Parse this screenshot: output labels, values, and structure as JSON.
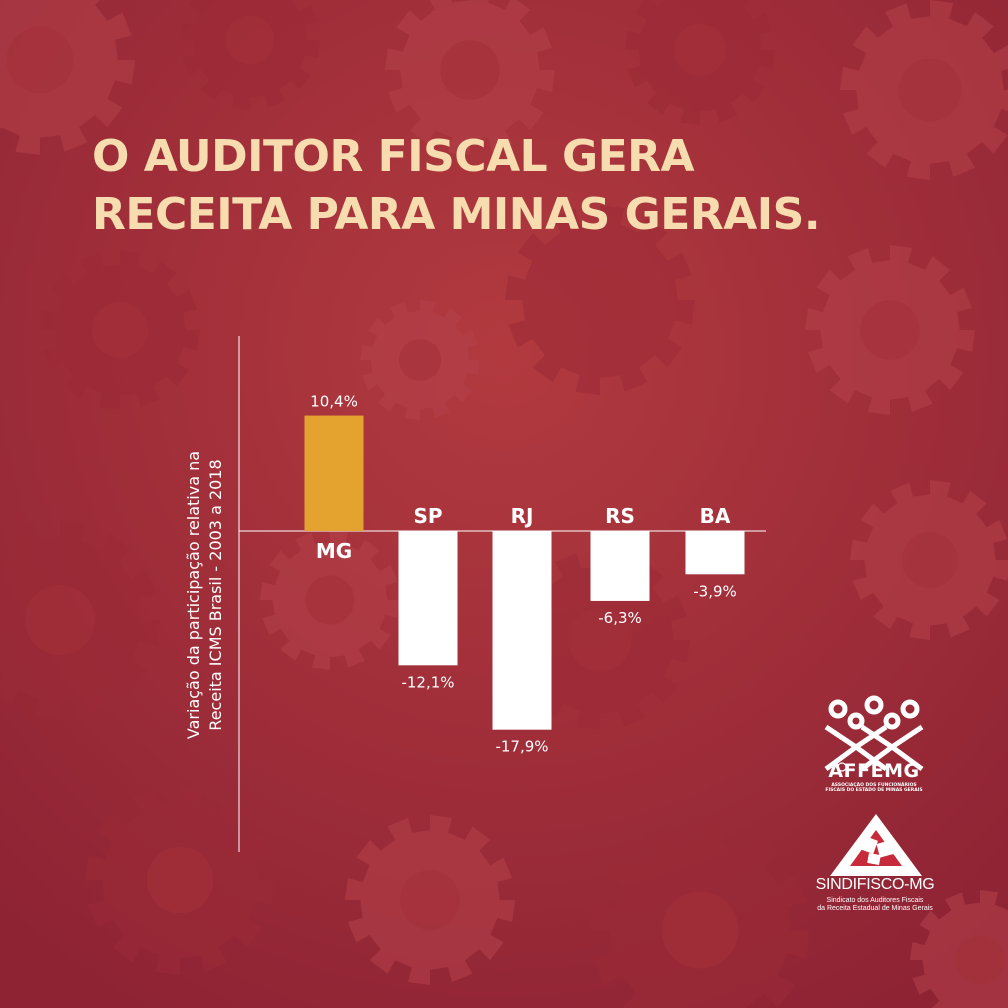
{
  "headline": {
    "line1": "O AUDITOR FISCAL GERA",
    "line2": "RECEITA PARA MINAS GERAIS."
  },
  "colors": {
    "background": "#a8303a",
    "headline": "#f6dcae",
    "highlight_bar": "#e4a32f",
    "other_bars": "#ffffff"
  },
  "chart_data": {
    "type": "bar",
    "ylabel_line1": "Variação da participação relativa na",
    "ylabel_line2": "Receita ICMS Brasil - 2003 a 2018",
    "categories": [
      "MG",
      "SP",
      "RJ",
      "RS",
      "BA"
    ],
    "values": [
      10.4,
      -12.1,
      -17.9,
      -6.3,
      -3.9
    ],
    "value_labels": [
      "10,4%",
      "-12,1%",
      "-17,9%",
      "-6,3%",
      "-3,9%"
    ],
    "highlight": "MG",
    "ylim": [
      -20,
      12
    ],
    "grid": false,
    "legend": false
  },
  "logos": {
    "affemg": {
      "name": "AFFEMG",
      "sub1": "ASSOCIAÇÃO DOS FUNCIONÁRIOS",
      "sub2": "FISCAIS DO ESTADO DE MINAS GERAIS"
    },
    "sindifisco": {
      "name": "SINDIFISCO-MG",
      "sub1": "Sindicato dos Auditores Fiscais",
      "sub2": "da Receita Estadual de Minas Gerais"
    }
  }
}
